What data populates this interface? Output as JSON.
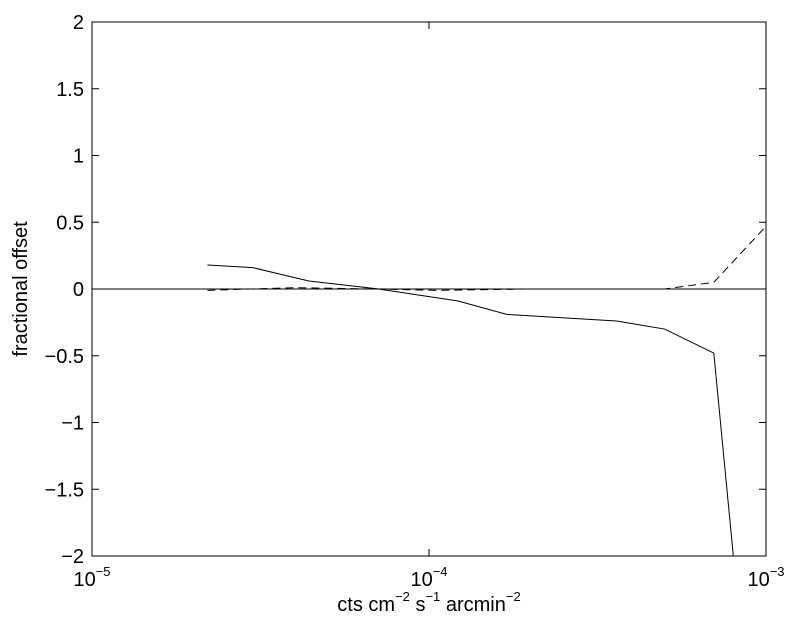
{
  "chart_data": {
    "type": "line",
    "xscale": "log",
    "xlim": [
      1e-05,
      0.001
    ],
    "ylim": [
      -2,
      2
    ],
    "ylabel": "fractional offset",
    "xlabel": {
      "parts": [
        {
          "text": "cts cm",
          "sup": false
        },
        {
          "text": "−2",
          "sup": true
        },
        {
          "text": " s",
          "sup": false
        },
        {
          "text": "−1",
          "sup": true
        },
        {
          "text": " arcmin",
          "sup": false
        },
        {
          "text": "−2",
          "sup": true
        }
      ]
    },
    "x_ticks": [
      {
        "value": 1e-05,
        "base": "10",
        "exp": "−5"
      },
      {
        "value": 0.0001,
        "base": "10",
        "exp": "−4"
      },
      {
        "value": 0.001,
        "base": "10",
        "exp": "−3"
      }
    ],
    "y_ticks": [
      {
        "value": 2,
        "label": "2"
      },
      {
        "value": 1.5,
        "label": "1.5"
      },
      {
        "value": 1,
        "label": "1"
      },
      {
        "value": 0.5,
        "label": "0.5"
      },
      {
        "value": 0,
        "label": "0"
      },
      {
        "value": -0.5,
        "label": "−0.5"
      },
      {
        "value": -1,
        "label": "−1"
      },
      {
        "value": -1.5,
        "label": "−1.5"
      },
      {
        "value": -2,
        "label": "−2"
      }
    ],
    "grid": false,
    "reference_line": {
      "y": 0,
      "style": "solid",
      "color": "#000000"
    },
    "series": [
      {
        "style": "solid",
        "color": "#000000",
        "x": [
          2.2e-05,
          3e-05,
          4.4e-05,
          7.1e-05,
          0.000122,
          0.00017,
          0.00036,
          0.0005,
          0.0007,
          0.0008
        ],
        "y": [
          0.18,
          0.16,
          0.06,
          0.0,
          -0.09,
          -0.19,
          -0.24,
          -0.3,
          -0.48,
          -2.0
        ]
      },
      {
        "style": "dashed",
        "color": "#000000",
        "x": [
          2.2e-05,
          4e-05,
          7e-05,
          0.000105,
          0.0002,
          0.0003,
          0.0005,
          0.0007,
          0.001
        ],
        "y": [
          -0.01,
          0.01,
          0.0,
          -0.01,
          0.0,
          0.0,
          0.0,
          0.05,
          0.47
        ]
      }
    ]
  }
}
